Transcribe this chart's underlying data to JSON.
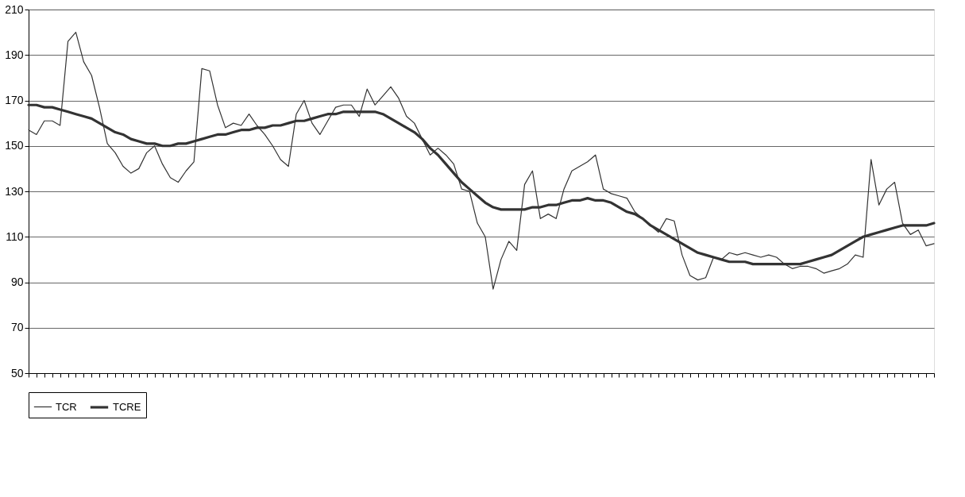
{
  "chart_data": {
    "type": "line",
    "categories": [
      null,
      null,
      null,
      null,
      null,
      null,
      null,
      null,
      null,
      null,
      null,
      null,
      null,
      null,
      null,
      null,
      null,
      null,
      null,
      null,
      null,
      null,
      null,
      null,
      null,
      null,
      null,
      null,
      null,
      null,
      null,
      null,
      null,
      null,
      null,
      null,
      null,
      null,
      null,
      null,
      null,
      null,
      null,
      null,
      null,
      null,
      null,
      null,
      null,
      null,
      null,
      null,
      null,
      null,
      null,
      null,
      null,
      null,
      null,
      null,
      null,
      null,
      null,
      null,
      null,
      null,
      null,
      null,
      null,
      null,
      null,
      null,
      null,
      null,
      null,
      null,
      null,
      null,
      null,
      null,
      null,
      null,
      null,
      null,
      null,
      null,
      null,
      null,
      null,
      null,
      null,
      null,
      null,
      null,
      null,
      null,
      null,
      null,
      null,
      null,
      null,
      null,
      null,
      null,
      null,
      null,
      null,
      null,
      null,
      null,
      null,
      null,
      null,
      null,
      null,
      null
    ],
    "series": [
      {
        "name": "TCR",
        "color": "#333333",
        "values": [
          157,
          155,
          161,
          161,
          159,
          196,
          200,
          187,
          181,
          167,
          151,
          147,
          141,
          138,
          140,
          147,
          150,
          142,
          136,
          134,
          139,
          143,
          184,
          183,
          168,
          158,
          160,
          159,
          164,
          159,
          155,
          150,
          144,
          141,
          164,
          170,
          160,
          155,
          161,
          167,
          168,
          168,
          163,
          175,
          168,
          172,
          176,
          171,
          163,
          160,
          153,
          146,
          149,
          146,
          142,
          131,
          130,
          116,
          110,
          87,
          100,
          108,
          104,
          133,
          139,
          118,
          120,
          118,
          131,
          139,
          141,
          143,
          146,
          131,
          129,
          128,
          127,
          121,
          118,
          115,
          112,
          118,
          117,
          102,
          93,
          91,
          92,
          101,
          100,
          103,
          102,
          103,
          102,
          101,
          102,
          101,
          98,
          96,
          97,
          97,
          96,
          94,
          95,
          96,
          98,
          102,
          101,
          144,
          124,
          131,
          134,
          116,
          111,
          113,
          106,
          107
        ]
      },
      {
        "name": "TCRE",
        "color": "#333333",
        "values": [
          168,
          168,
          167,
          167,
          166,
          165,
          164,
          163,
          162,
          160,
          158,
          156,
          155,
          153,
          152,
          151,
          151,
          150,
          150,
          151,
          151,
          152,
          153,
          154,
          155,
          155,
          156,
          157,
          157,
          158,
          158,
          159,
          159,
          160,
          161,
          161,
          162,
          163,
          164,
          164,
          165,
          165,
          165,
          165,
          165,
          164,
          162,
          160,
          158,
          156,
          153,
          149,
          146,
          142,
          138,
          134,
          131,
          128,
          125,
          123,
          122,
          122,
          122,
          122,
          123,
          123,
          124,
          124,
          125,
          126,
          126,
          127,
          126,
          126,
          125,
          123,
          121,
          120,
          118,
          115,
          113,
          111,
          109,
          107,
          105,
          103,
          102,
          101,
          100,
          99,
          99,
          99,
          98,
          98,
          98,
          98,
          98,
          98,
          98,
          99,
          100,
          101,
          102,
          104,
          106,
          108,
          110,
          111,
          112,
          113,
          114,
          115,
          115,
          115,
          115,
          116
        ]
      }
    ],
    "ylim": [
      50,
      210
    ],
    "yticks": [
      50,
      70,
      90,
      110,
      130,
      150,
      170,
      190,
      210
    ],
    "grid": "y",
    "legend": "bottom",
    "tick_labels": "y"
  }
}
